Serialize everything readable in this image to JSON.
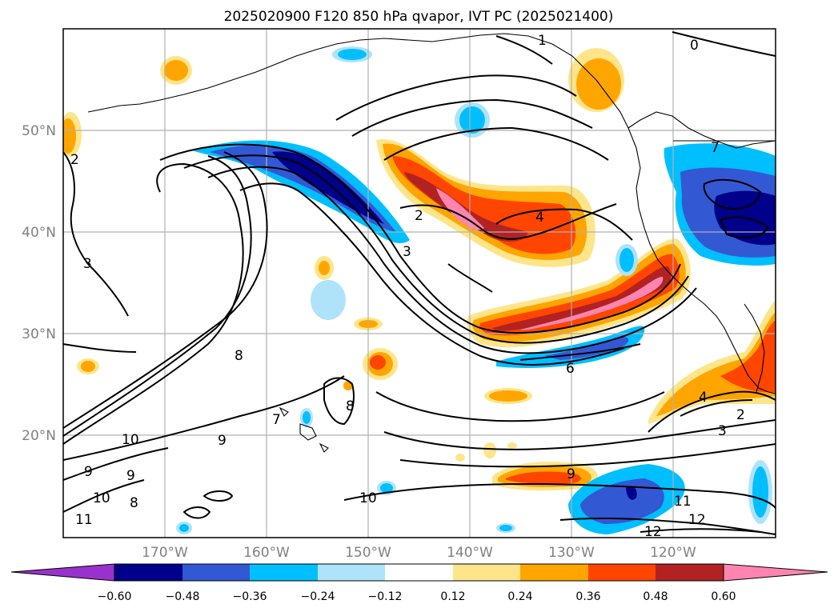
{
  "title": "2025020900 F120 850 hPa qvapor, IVT PC (2025021400)",
  "lat_labels": [
    "50°N",
    "40°N",
    "30°N",
    "20°N"
  ],
  "lon_labels": [
    "170°W",
    "160°W",
    "150°W",
    "140°W",
    "130°W",
    "120°W"
  ],
  "colorbar": {
    "tick_labels": [
      "−0.60",
      "−0.48",
      "−0.36",
      "−0.24",
      "−0.12",
      "0.12",
      "0.24",
      "0.36",
      "0.48",
      "0.60"
    ],
    "colors": [
      "#9932cc",
      "#00008b",
      "#3358d4",
      "#00bfff",
      "#aee3fa",
      "#ffffff",
      "#ffe58a",
      "#ffa500",
      "#ff4500",
      "#b22222",
      "#ff85b0"
    ]
  },
  "contour_labels": [
    "0",
    "1",
    "2",
    "2",
    "3",
    "3",
    "4",
    "6",
    "7",
    "8",
    "8",
    "8",
    "9",
    "9",
    "9",
    "9",
    "10",
    "10",
    "10",
    "11",
    "11",
    "12",
    "12",
    "7",
    "2",
    "4",
    "3"
  ],
  "colors": {
    "negative_strong": "#00008b",
    "negative_mid": "#3358d4",
    "negative_light": "#00bfff",
    "negative_faint": "#aee3fa",
    "positive_faint": "#ffe58a",
    "positive_light": "#ffa500",
    "positive_mid": "#ff4500",
    "positive_strong": "#b22222",
    "positive_max": "#ff85b0"
  }
}
